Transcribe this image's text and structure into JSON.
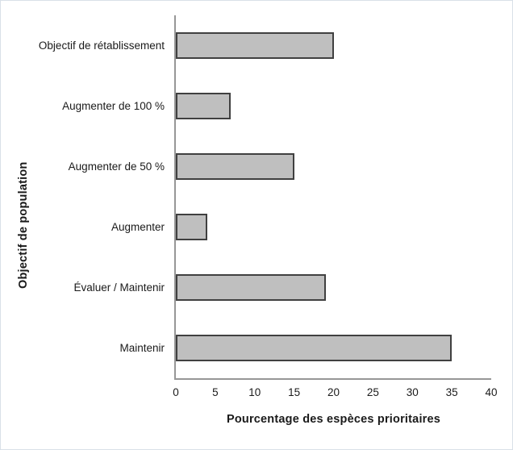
{
  "chart_data": {
    "type": "bar",
    "orientation": "horizontal",
    "categories": [
      "Objectif de rétablissement",
      "Augmenter de 100 %",
      "Augmenter de 50 %",
      "Augmenter",
      "Évaluer / Maintenir",
      "Maintenir"
    ],
    "values": [
      20,
      7,
      15,
      4,
      19,
      35
    ],
    "title": "",
    "xlabel": "Pourcentage des espèces prioritaires",
    "ylabel": "Objectif de population",
    "xlim": [
      0,
      40
    ],
    "xticks": [
      0,
      5,
      10,
      15,
      20,
      25,
      30,
      35,
      40
    ],
    "grid": false,
    "legend": false,
    "colors": {
      "bar_fill": "#bfbfbf",
      "bar_border": "#404040",
      "axis_line": "#979797",
      "text": "#1a1a1a",
      "figure_border": "#d9e0e8",
      "background": "#ffffff"
    }
  }
}
